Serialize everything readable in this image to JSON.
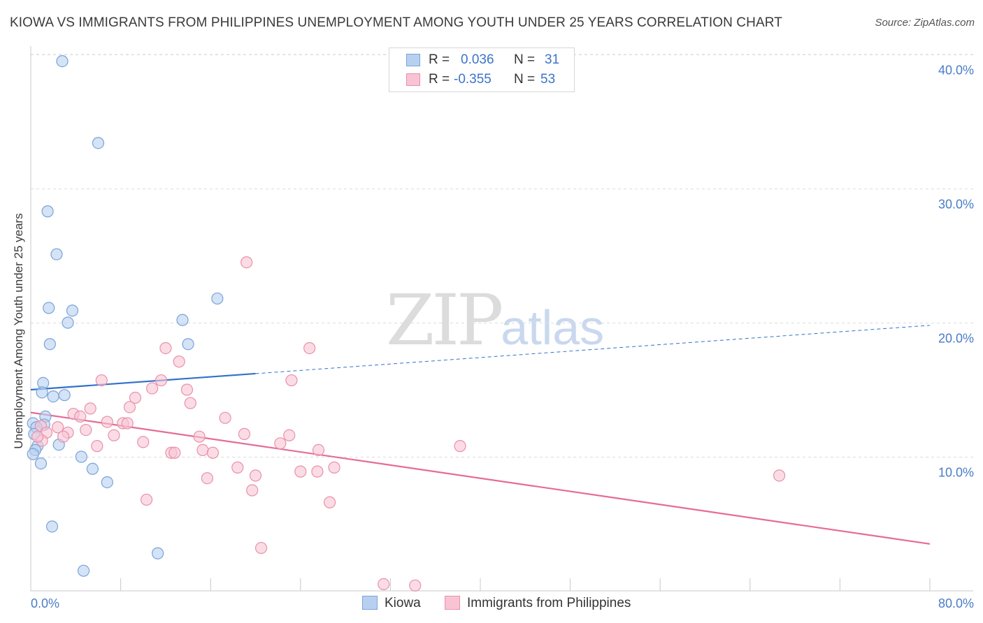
{
  "title": "KIOWA VS IMMIGRANTS FROM PHILIPPINES UNEMPLOYMENT AMONG YOUTH UNDER 25 YEARS CORRELATION CHART",
  "source": "Source: ZipAtlas.com",
  "watermark": {
    "part1": "ZIP",
    "part2": "atlas"
  },
  "legend": {
    "rows": [
      {
        "r_label": "R =",
        "r_value": "0.036",
        "n_label": "N =",
        "n_value": "31"
      },
      {
        "r_label": "R =",
        "r_value": "-0.355",
        "n_label": "N =",
        "n_value": "53"
      }
    ]
  },
  "colors": {
    "kiowa_fill": "#b8d0f0",
    "kiowa_stroke": "#7aa3d8",
    "kiowa_line": "#3272c8",
    "phil_fill": "#f8c4d4",
    "phil_stroke": "#e890ac",
    "phil_line": "#e66b97",
    "grid": "#dcdcdc",
    "tick_text": "#4a7cc7"
  },
  "chart_data": {
    "type": "scatter",
    "title": "KIOWA VS IMMIGRANTS FROM PHILIPPINES UNEMPLOYMENT AMONG YOUTH UNDER 25 YEARS CORRELATION CHART",
    "xlabel": "",
    "ylabel": "Unemployment Among Youth under 25 years",
    "xlim": [
      0,
      80
    ],
    "ylim": [
      0,
      40
    ],
    "x_tick_labels": [
      "0.0%",
      "80.0%"
    ],
    "y_ticks": [
      10,
      20,
      30,
      40
    ],
    "y_tick_labels": [
      "10.0%",
      "20.0%",
      "30.0%",
      "40.0%"
    ],
    "series": [
      {
        "name": "Kiowa",
        "r": 0.036,
        "n": 31,
        "points": [
          [
            2.8,
            39.5
          ],
          [
            6.0,
            33.4
          ],
          [
            1.5,
            28.3
          ],
          [
            2.3,
            25.1
          ],
          [
            1.6,
            21.1
          ],
          [
            3.7,
            20.9
          ],
          [
            3.3,
            20.0
          ],
          [
            13.5,
            20.2
          ],
          [
            16.6,
            21.8
          ],
          [
            1.7,
            18.4
          ],
          [
            14.0,
            18.4
          ],
          [
            1.1,
            15.5
          ],
          [
            1.0,
            14.8
          ],
          [
            2.0,
            14.5
          ],
          [
            3.0,
            14.6
          ],
          [
            0.2,
            12.5
          ],
          [
            1.3,
            13.0
          ],
          [
            1.2,
            12.4
          ],
          [
            0.5,
            12.2
          ],
          [
            0.3,
            11.7
          ],
          [
            0.6,
            10.8
          ],
          [
            2.5,
            10.9
          ],
          [
            0.4,
            10.5
          ],
          [
            0.2,
            10.2
          ],
          [
            4.5,
            10.0
          ],
          [
            0.9,
            9.5
          ],
          [
            5.5,
            9.1
          ],
          [
            6.8,
            8.1
          ],
          [
            1.9,
            4.8
          ],
          [
            11.3,
            2.8
          ],
          [
            4.7,
            1.5
          ]
        ]
      },
      {
        "name": "Immigrants from Philippines",
        "r": -0.355,
        "n": 53,
        "points": [
          [
            19.2,
            24.5
          ],
          [
            12.0,
            18.1
          ],
          [
            24.8,
            18.1
          ],
          [
            13.2,
            17.1
          ],
          [
            6.3,
            15.7
          ],
          [
            11.6,
            15.7
          ],
          [
            23.2,
            15.7
          ],
          [
            10.8,
            15.1
          ],
          [
            13.9,
            15.0
          ],
          [
            9.3,
            14.4
          ],
          [
            14.2,
            14.0
          ],
          [
            8.8,
            13.7
          ],
          [
            5.3,
            13.6
          ],
          [
            3.8,
            13.2
          ],
          [
            4.4,
            13.0
          ],
          [
            17.3,
            12.9
          ],
          [
            6.8,
            12.6
          ],
          [
            8.2,
            12.5
          ],
          [
            8.6,
            12.5
          ],
          [
            0.9,
            12.3
          ],
          [
            2.4,
            12.2
          ],
          [
            4.9,
            12.0
          ],
          [
            1.4,
            11.8
          ],
          [
            3.3,
            11.8
          ],
          [
            7.4,
            11.6
          ],
          [
            19.0,
            11.7
          ],
          [
            23.0,
            11.6
          ],
          [
            2.9,
            11.5
          ],
          [
            15.0,
            11.5
          ],
          [
            1.0,
            11.2
          ],
          [
            10.0,
            11.1
          ],
          [
            22.2,
            11.0
          ],
          [
            5.9,
            10.8
          ],
          [
            38.2,
            10.8
          ],
          [
            15.3,
            10.5
          ],
          [
            25.6,
            10.5
          ],
          [
            12.5,
            10.3
          ],
          [
            12.8,
            10.3
          ],
          [
            16.2,
            10.3
          ],
          [
            18.4,
            9.2
          ],
          [
            27.0,
            9.2
          ],
          [
            24.0,
            8.9
          ],
          [
            25.5,
            8.9
          ],
          [
            20.0,
            8.6
          ],
          [
            15.7,
            8.4
          ],
          [
            66.6,
            8.6
          ],
          [
            19.7,
            7.5
          ],
          [
            10.3,
            6.8
          ],
          [
            26.6,
            6.6
          ],
          [
            20.5,
            3.2
          ],
          [
            31.4,
            0.5
          ],
          [
            34.2,
            0.4
          ],
          [
            0.6,
            11.5
          ]
        ]
      }
    ],
    "trend_lines": [
      {
        "series": "Kiowa",
        "solid": [
          [
            0,
            15.0
          ],
          [
            20.0,
            16.2
          ]
        ],
        "dashed": [
          [
            20.0,
            16.2
          ],
          [
            80.0,
            19.8
          ]
        ]
      },
      {
        "series": "Immigrants from Philippines",
        "solid": [
          [
            0,
            13.3
          ],
          [
            80.0,
            3.5
          ]
        ]
      }
    ],
    "grid": true,
    "legend_position": "top-center"
  },
  "bottom_legend": {
    "series1": "Kiowa",
    "series2": "Immigrants from Philippines"
  }
}
